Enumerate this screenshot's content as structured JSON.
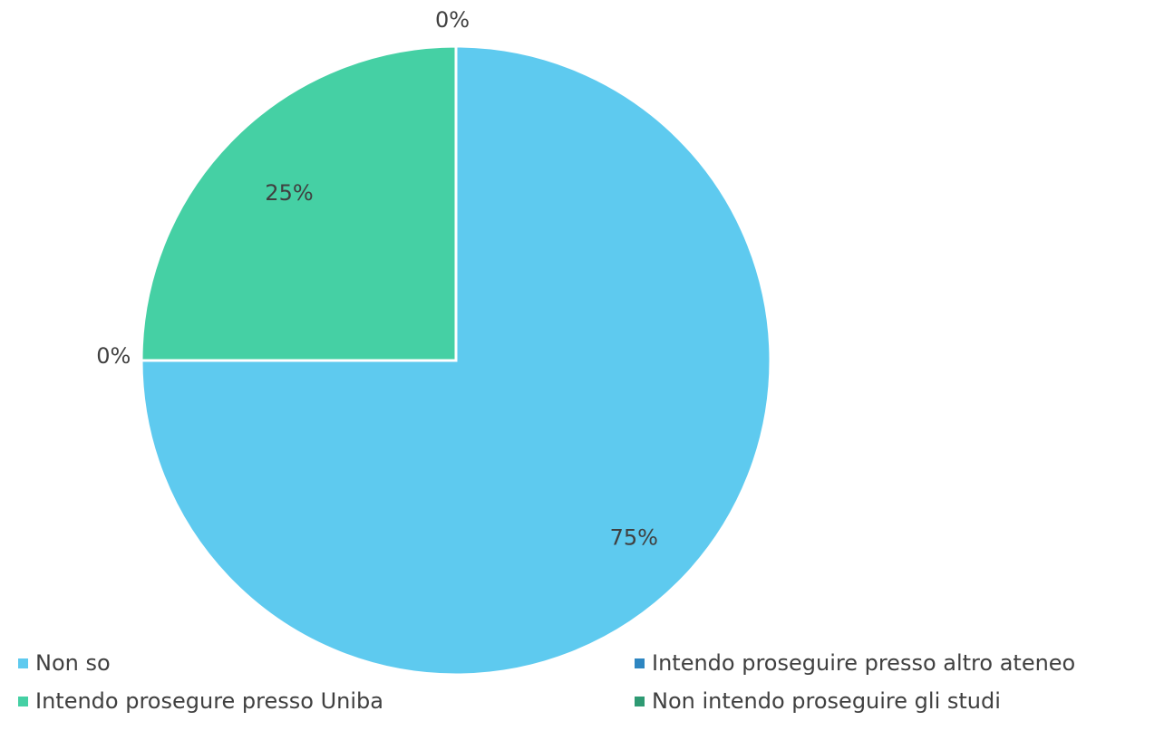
{
  "chart_data": {
    "type": "pie",
    "categories": [
      "Non so",
      "Intendo proseguire presso altro ateneo",
      "Intendo prosegure presso Uniba",
      "Non intendo proseguire gli studi"
    ],
    "values": [
      75,
      0,
      25,
      0
    ],
    "value_labels": [
      "75%",
      "0%",
      "25%",
      "0%"
    ],
    "colors": [
      "#5ecaef",
      "#2e86c1",
      "#45d0a4",
      "#2e9a73"
    ],
    "legend_position": "bottom"
  }
}
